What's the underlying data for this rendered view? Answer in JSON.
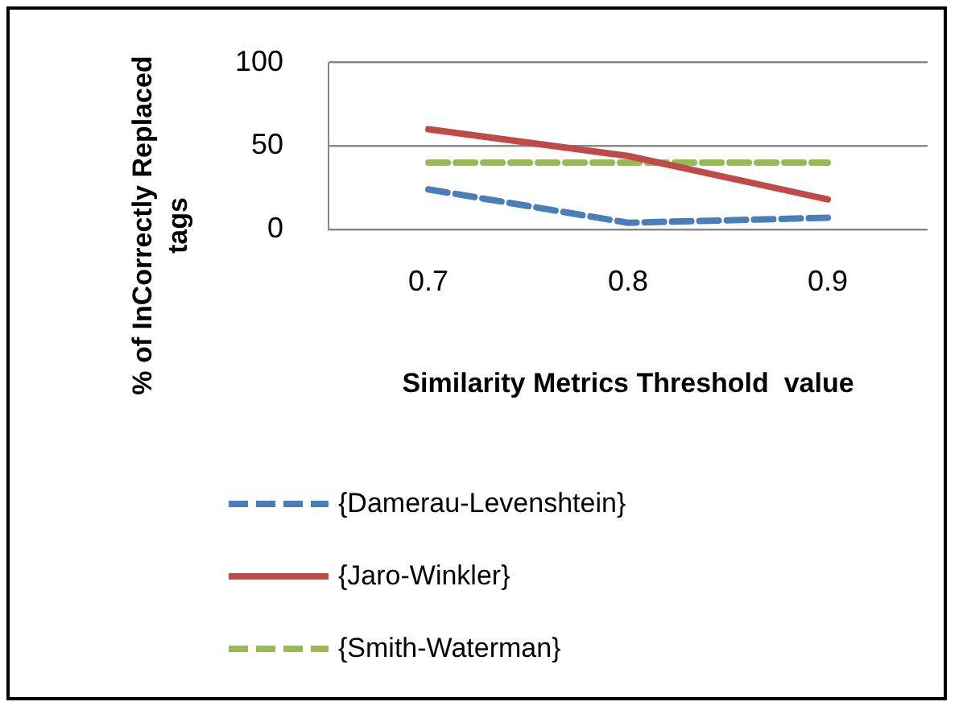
{
  "chart_data": {
    "type": "line",
    "xlabel": "Similarity Metrics Threshold  value",
    "ylabel": "% of InCorrectly Replaced tags",
    "categories": [
      "0.7",
      "0.8",
      "0.9"
    ],
    "series": [
      {
        "name": "{Damerau-Levenshtein}",
        "color": "#4a7ebb",
        "values": [
          24,
          4,
          7
        ],
        "line_style": "dashed"
      },
      {
        "name": "{Jaro-Winkler}",
        "color": "#be4b48",
        "values": [
          60,
          44,
          18
        ],
        "line_style": "solid"
      },
      {
        "name": "{Smith-Waterman}",
        "color": "#98b954",
        "values": [
          40,
          40,
          40
        ],
        "line_style": "dashed"
      }
    ],
    "ylim": [
      0,
      100
    ],
    "yticks": [
      0,
      50,
      100
    ],
    "grid": "y",
    "legend": "bottom",
    "marker": "none"
  }
}
